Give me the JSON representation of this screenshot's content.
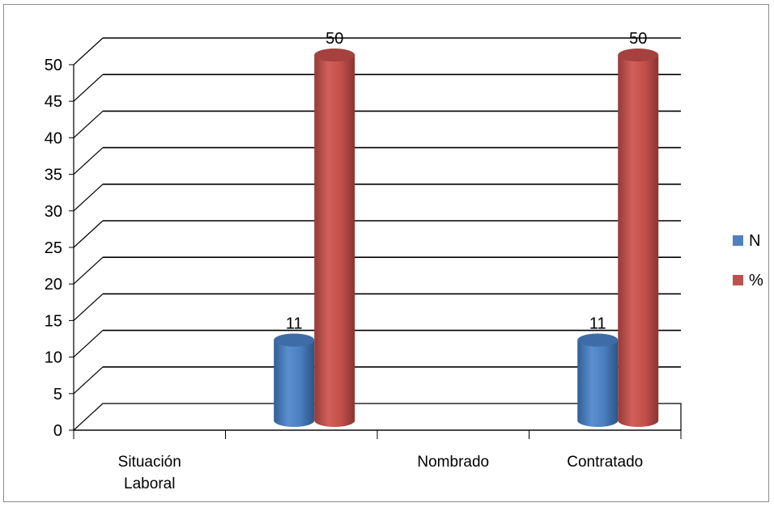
{
  "chart_data": {
    "type": "bar",
    "style": "3d-cylinder",
    "categories": [
      "Situación Laboral",
      "",
      "Nombrado",
      "Contratado"
    ],
    "category_lines": [
      [
        "Situación",
        "Laboral"
      ],
      [
        ""
      ],
      [
        "Nombrado"
      ],
      [
        "Contratado"
      ]
    ],
    "series": [
      {
        "name": "N",
        "values": [
          null,
          11,
          null,
          11
        ],
        "color": "#4F81BD"
      },
      {
        "name": "%",
        "values": [
          null,
          50,
          null,
          50
        ],
        "color": "#C0504D"
      }
    ],
    "data_labels": true,
    "ylim": [
      0,
      50
    ],
    "yticks": [
      0,
      5,
      10,
      15,
      20,
      25,
      30,
      35,
      40,
      45,
      50
    ],
    "grid": true,
    "legend_position": "right",
    "title": "",
    "xlabel": "",
    "ylabel": ""
  }
}
